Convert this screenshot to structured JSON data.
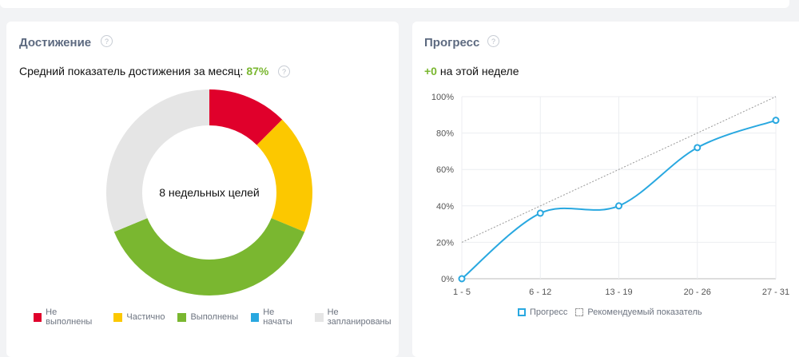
{
  "achievement": {
    "title": "Достижение",
    "help": "?",
    "subtitle_prefix": "Средний показатель достижения за месяц:",
    "subtitle_value": "87%",
    "subtitle_help": "?",
    "center_text": "8 недельных целей"
  },
  "progress": {
    "title": "Прогресс",
    "help": "?",
    "delta": "+0",
    "delta_suffix": "на этой неделе"
  },
  "chart_data": [
    {
      "type": "pie",
      "categories": [
        "Не выполнены",
        "Частично",
        "Выполнены",
        "Не начаты",
        "Не запланированы"
      ],
      "values": [
        1,
        1.5,
        3,
        0,
        2.5
      ],
      "colors": [
        "#e0002b",
        "#fcc800",
        "#7ab730",
        "#29a8e0",
        "#e5e5e5"
      ],
      "center_label": "8 недельных целей",
      "legend": "bottom"
    },
    {
      "type": "line",
      "x": [
        "1 - 5",
        "6 - 12",
        "13 - 19",
        "20 - 26",
        "27 - 31"
      ],
      "yticks": [
        "0%",
        "20%",
        "40%",
        "60%",
        "80%",
        "100%"
      ],
      "ylim": [
        0,
        100
      ],
      "grid": true,
      "legend": "bottom",
      "series": [
        {
          "name": "Прогресс",
          "values": [
            0,
            36,
            40,
            72,
            87
          ],
          "color": "#29a8e0"
        },
        {
          "name": "Рекомендуемый показатель",
          "values": [
            20,
            40,
            60,
            80,
            100
          ],
          "color": "#999999",
          "style": "dashed"
        }
      ]
    }
  ]
}
